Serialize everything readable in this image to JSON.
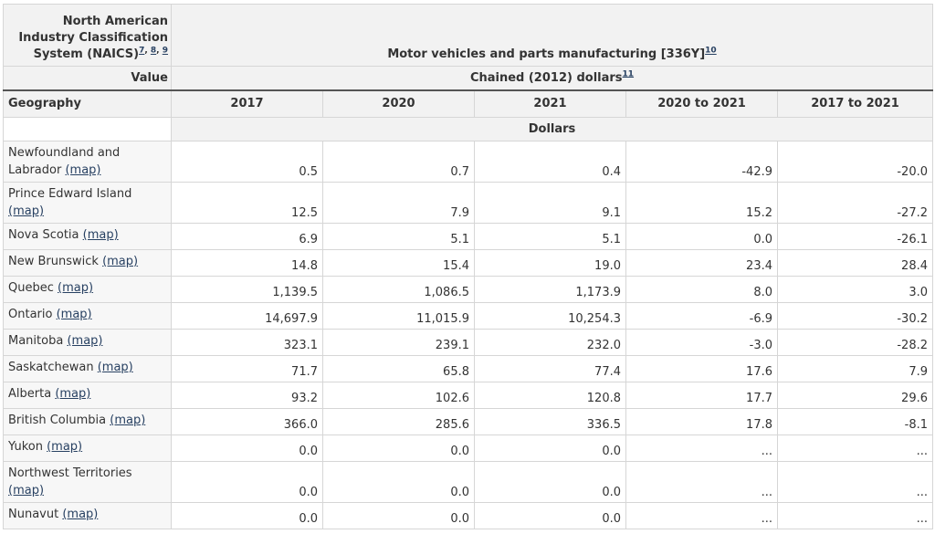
{
  "header": {
    "naics_label": "North American Industry Classification System (NAICS)",
    "naics_footnotes": [
      "7",
      "8",
      "9"
    ],
    "title": "Motor vehicles and parts manufacturing [336Y]",
    "title_footnote": "10",
    "value_label": "Value",
    "unit": "Chained (2012) dollars",
    "unit_footnote": "11",
    "geography_label": "Geography",
    "columns": [
      "2017",
      "2020",
      "2021",
      "2020 to 2021",
      "2017 to 2021"
    ],
    "dollars_label": "Dollars"
  },
  "map_label": "(map)",
  "rows": [
    {
      "name": "Newfoundland and Labrador",
      "values": [
        "0.5",
        "0.7",
        "0.4",
        "-42.9",
        "-20.0"
      ]
    },
    {
      "name": "Prince Edward Island",
      "values": [
        "12.5",
        "7.9",
        "9.1",
        "15.2",
        "-27.2"
      ]
    },
    {
      "name": "Nova Scotia",
      "values": [
        "6.9",
        "5.1",
        "5.1",
        "0.0",
        "-26.1"
      ]
    },
    {
      "name": "New Brunswick",
      "values": [
        "14.8",
        "15.4",
        "19.0",
        "23.4",
        "28.4"
      ]
    },
    {
      "name": "Quebec",
      "values": [
        "1,139.5",
        "1,086.5",
        "1,173.9",
        "8.0",
        "3.0"
      ]
    },
    {
      "name": "Ontario",
      "values": [
        "14,697.9",
        "11,015.9",
        "10,254.3",
        "-6.9",
        "-30.2"
      ]
    },
    {
      "name": "Manitoba",
      "values": [
        "323.1",
        "239.1",
        "232.0",
        "-3.0",
        "-28.2"
      ]
    },
    {
      "name": "Saskatchewan",
      "values": [
        "71.7",
        "65.8",
        "77.4",
        "17.6",
        "7.9"
      ]
    },
    {
      "name": "Alberta",
      "values": [
        "93.2",
        "102.6",
        "120.8",
        "17.7",
        "29.6"
      ]
    },
    {
      "name": "British Columbia",
      "values": [
        "366.0",
        "285.6",
        "336.5",
        "17.8",
        "-8.1"
      ]
    },
    {
      "name": "Yukon",
      "values": [
        "0.0",
        "0.0",
        "0.0",
        "...",
        "..."
      ]
    },
    {
      "name": "Northwest Territories",
      "values": [
        "0.0",
        "0.0",
        "0.0",
        "...",
        "..."
      ]
    },
    {
      "name": "Nunavut",
      "values": [
        "0.0",
        "0.0",
        "0.0",
        "...",
        "..."
      ]
    }
  ]
}
